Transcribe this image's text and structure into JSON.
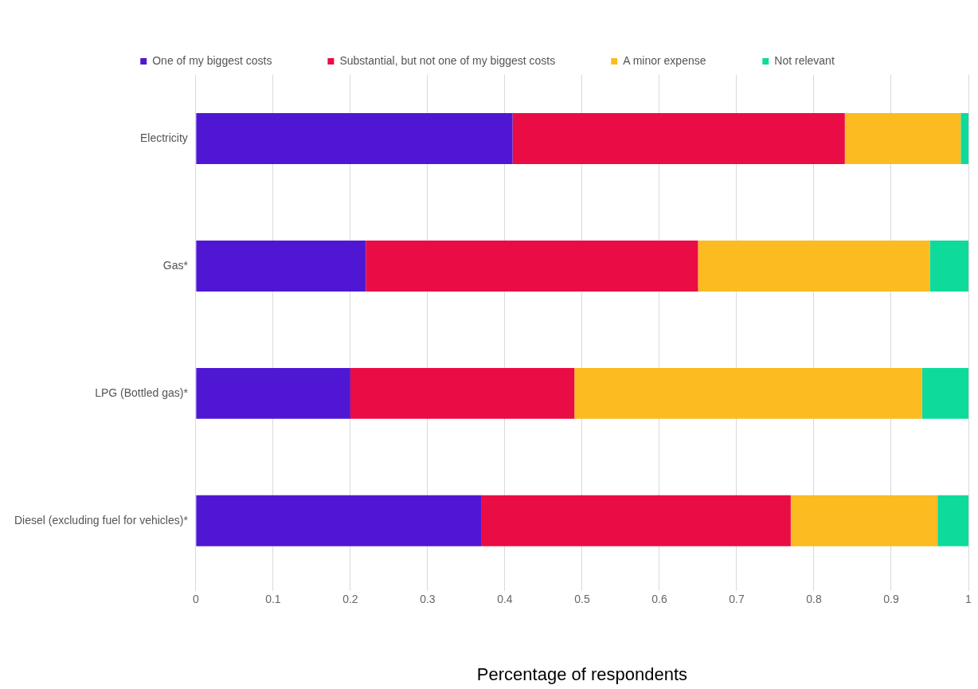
{
  "chart_data": {
    "type": "bar",
    "orientation": "horizontal",
    "stacked": true,
    "xlabel": "Percentage of respondents",
    "categories": [
      "Electricity",
      "Gas*",
      "LPG (Bottled gas)*",
      "Diesel (excluding fuel for vehicles)*"
    ],
    "series": [
      {
        "name": "One of my biggest costs",
        "color": "#4f17d4",
        "values": [
          0.41,
          0.22,
          0.2,
          0.37
        ]
      },
      {
        "name": "Substantial, but not one of my biggest costs",
        "color": "#ea0c44",
        "values": [
          0.43,
          0.43,
          0.29,
          0.4
        ]
      },
      {
        "name": "A minor expense",
        "color": "#fbbb21",
        "values": [
          0.15,
          0.3,
          0.45,
          0.19
        ]
      },
      {
        "name": "Not relevant",
        "color": "#0edb9b",
        "values": [
          0.01,
          0.05,
          0.06,
          0.04
        ]
      }
    ],
    "xlim": [
      0,
      1
    ],
    "xticks": [
      0,
      0.1,
      0.2,
      0.3,
      0.4,
      0.5,
      0.6,
      0.7,
      0.8,
      0.9,
      1
    ],
    "grid": "x",
    "legend": "top"
  }
}
